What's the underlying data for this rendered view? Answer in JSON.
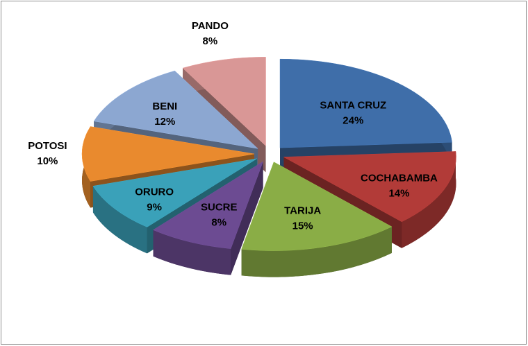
{
  "chart_data": {
    "type": "pie",
    "categories": [
      "SANTA CRUZ",
      "COCHABAMBA",
      "TARIJA",
      "SUCRE",
      "ORURO",
      "POTOSI",
      "BENI",
      "PANDO"
    ],
    "values": [
      24,
      14,
      15,
      8,
      9,
      10,
      12,
      8
    ],
    "value_labels": [
      "24%",
      "14%",
      "15%",
      "8%",
      "9%",
      "10%",
      "12%",
      "8%"
    ],
    "colors": [
      "#3f6ea9",
      "#b23b38",
      "#8aad46",
      "#6c4b92",
      "#3aa1b9",
      "#e98a2e",
      "#8ca7d1",
      "#d99796"
    ]
  }
}
